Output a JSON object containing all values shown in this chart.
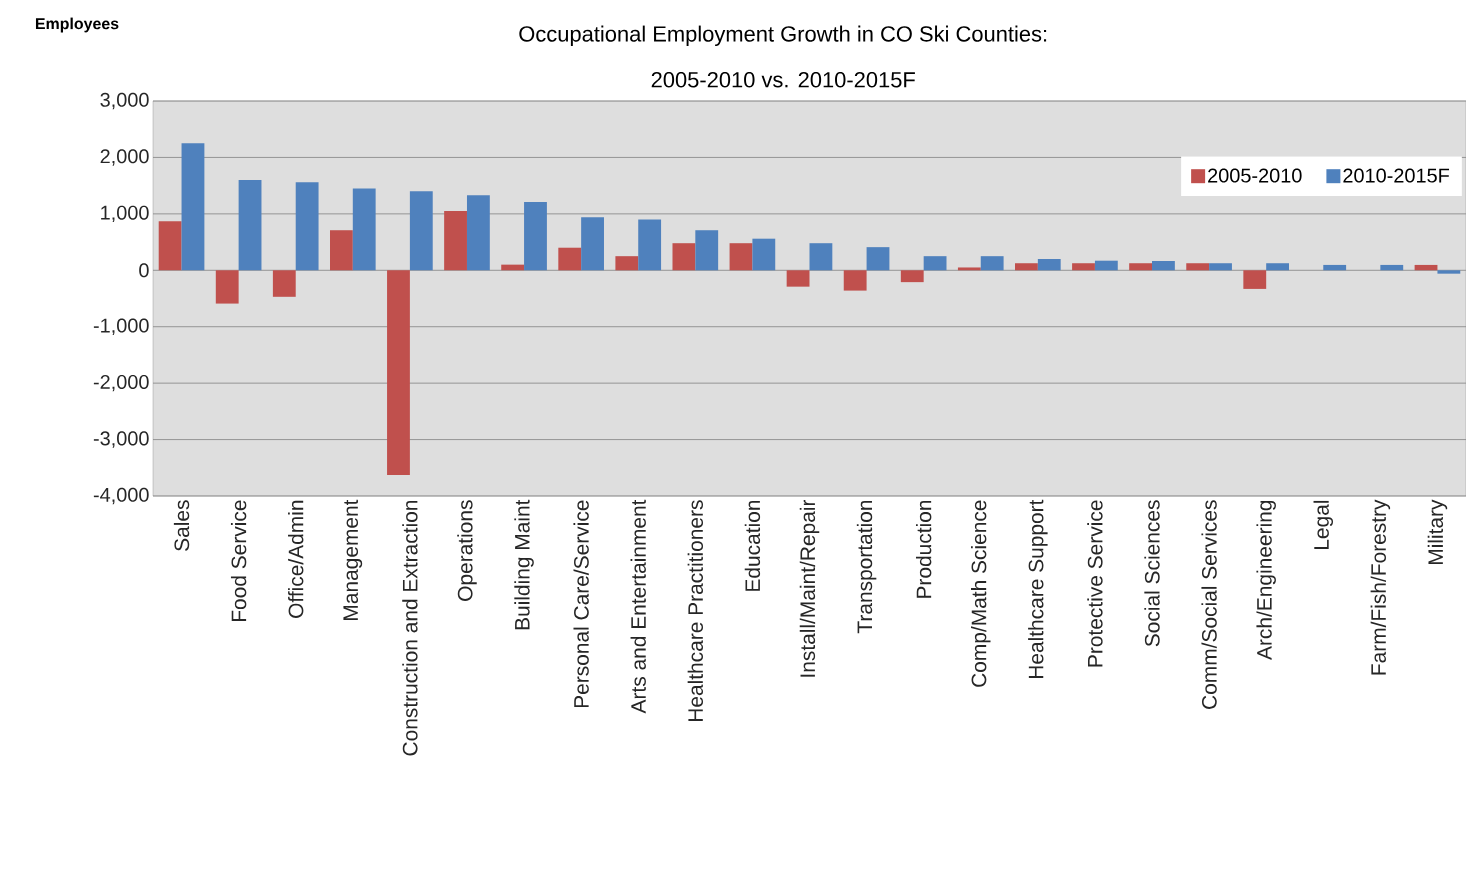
{
  "chart_data": {
    "type": "bar",
    "title": "Occupational Employment  Growth in CO Ski Counties:",
    "subtitle": "2005-2010 vs. 2010-2015F",
    "ylabel": "Employees",
    "categories": [
      "Sales",
      "Food Service",
      "Office/Admin",
      "Management",
      "Construction and Extraction",
      "Operations",
      "Building Maint",
      "Personal Care/Service",
      "Arts and Entertainment",
      "Healthcare Practitioners",
      "Education",
      "Install/Maint/Repair",
      "Transportation",
      "Production",
      "Comp/Math Science",
      "Healthcare Support",
      "Protective Service",
      "Social Sciences",
      "Comm/Social Services",
      "Arch/Engineering",
      "Legal",
      "Farm/Fish/Forestry",
      "Military"
    ],
    "series": [
      {
        "name": "2005-2010",
        "color": "#c0504d",
        "values": [
          870,
          -590,
          -470,
          710,
          -3630,
          1050,
          100,
          400,
          250,
          480,
          480,
          -290,
          -360,
          -210,
          50,
          125,
          125,
          125,
          125,
          -330,
          0,
          0,
          95
        ]
      },
      {
        "name": "2010-2015F",
        "color": "#4f81bd",
        "values": [
          2250,
          1600,
          1560,
          1450,
          1400,
          1330,
          1210,
          940,
          900,
          710,
          560,
          480,
          410,
          250,
          250,
          200,
          170,
          165,
          125,
          125,
          95,
          95,
          -60
        ]
      }
    ],
    "ylim": [
      -4000,
      3000
    ],
    "yticks": [
      {
        "value": -4000,
        "label": "-4,000"
      },
      {
        "value": -3000,
        "label": "-3,000"
      },
      {
        "value": -2000,
        "label": "-2,000"
      },
      {
        "value": -1000,
        "label": "-1,000"
      },
      0,
      {
        "value": 1000,
        "label": "1,000"
      },
      {
        "value": 2000,
        "label": "2,000"
      },
      {
        "value": 3000,
        "label": "3,000"
      }
    ],
    "grid": "y",
    "legend": "top right"
  }
}
